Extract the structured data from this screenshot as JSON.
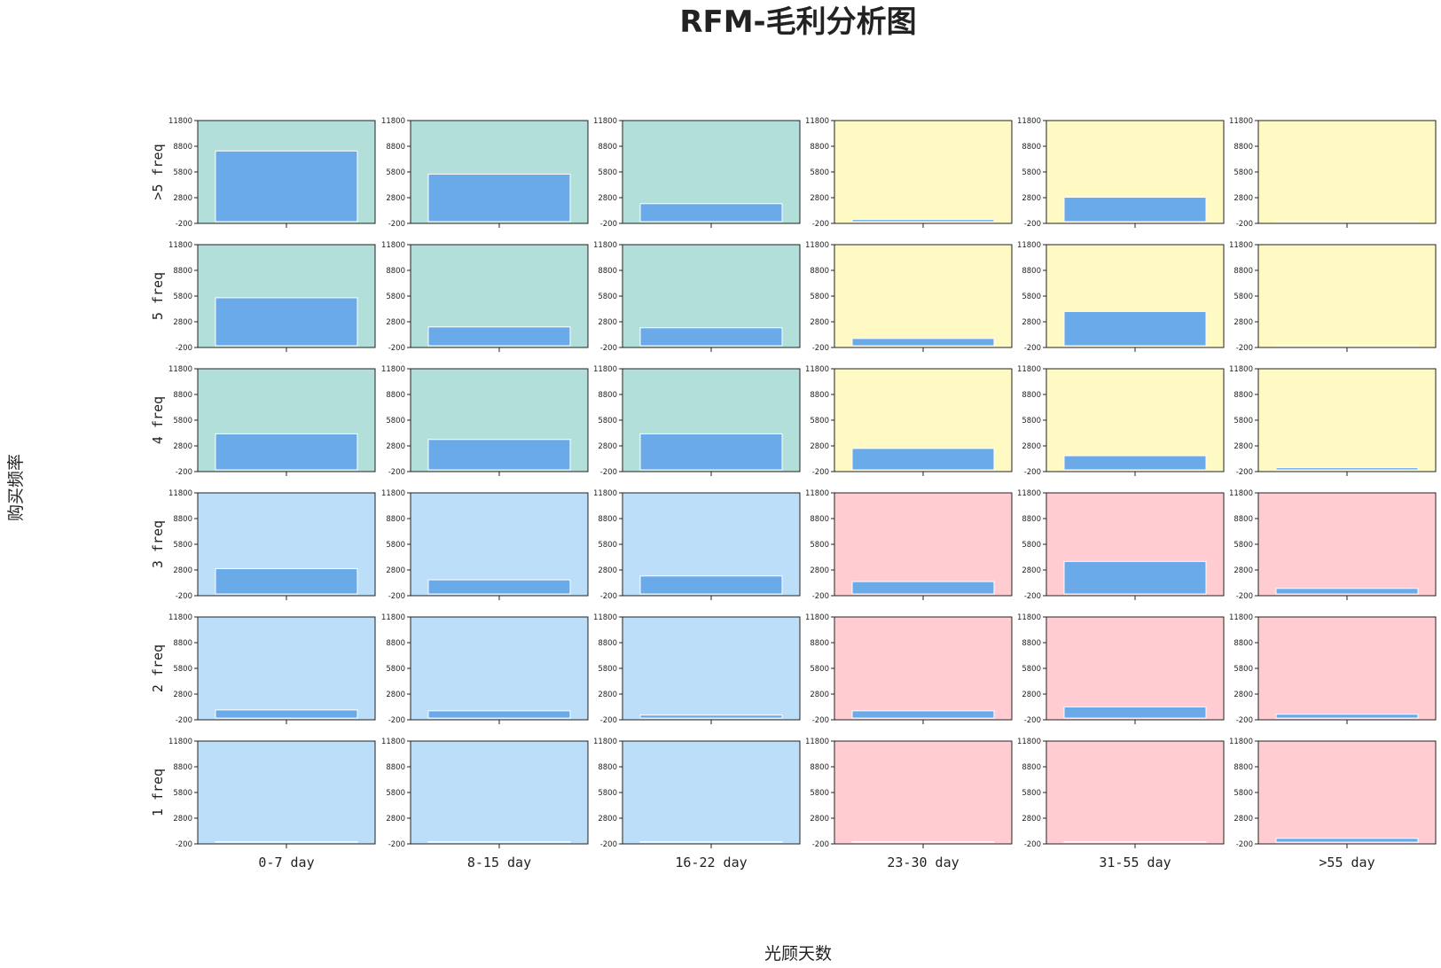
{
  "chart_data": {
    "type": "bar",
    "layout": "small-multiples-grid",
    "title": "RFM-毛利分析图",
    "xlabel": "光顾天数",
    "ylabel": "购买频率",
    "rows": [
      ">5 freq",
      "5 freq",
      "4 freq",
      "3 freq",
      "2 freq",
      "1 freq"
    ],
    "columns": [
      "0-7 day",
      "8-15 day",
      "16-22 day",
      "23-30 day",
      "31-55 day",
      ">55 day"
    ],
    "ylim": [
      -200,
      11800
    ],
    "yticks": [
      -200,
      2800,
      5800,
      8800,
      11800
    ],
    "ytick_labels": [
      "-200",
      "2800",
      "5800",
      "8800",
      "11800"
    ],
    "bar_color": "#6aaae8",
    "quadrant_colors": {
      "top-left": "#b3dfdb",
      "top-right": "#fff9c3",
      "bottom-left": "#bcdef8",
      "bottom-right": "#ffccd1"
    },
    "values": [
      [
        8250,
        5550,
        2100,
        250,
        2850,
        0
      ],
      [
        5600,
        2200,
        2100,
        850,
        4000,
        0
      ],
      [
        4200,
        3550,
        4200,
        2500,
        1650,
        250
      ],
      [
        2950,
        1650,
        2100,
        1450,
        3800,
        650
      ],
      [
        950,
        850,
        350,
        850,
        1300,
        450
      ],
      [
        0,
        0,
        50,
        0,
        0,
        450
      ]
    ]
  }
}
